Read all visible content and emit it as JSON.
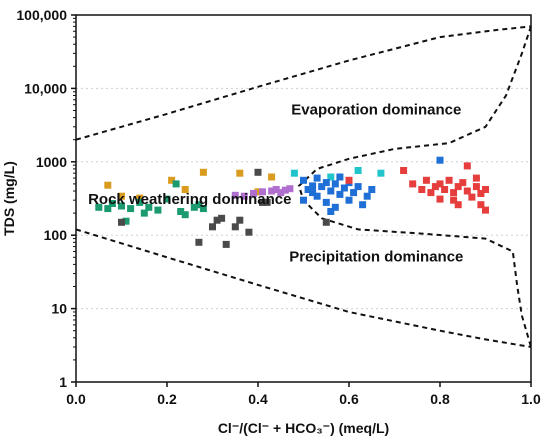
{
  "chart_data": {
    "type": "scatter",
    "title": "",
    "xlabel": "Cl⁻/(Cl⁻ + HCO₃⁻) (meq/L)",
    "ylabel": "TDS (mg/L)",
    "xlim": [
      0,
      1.0
    ],
    "ylim": [
      1,
      100000
    ],
    "y_scale": "log",
    "grid": "horizontal dotted",
    "x_ticks": [
      "0.0",
      "0.2",
      "0.4",
      "0.6",
      "0.8",
      "1.0"
    ],
    "y_ticks": [
      {
        "value": 1,
        "label": "1"
      },
      {
        "value": 10,
        "label": "10"
      },
      {
        "value": 100,
        "label": "100"
      },
      {
        "value": 1000,
        "label": "1000"
      },
      {
        "value": 10000,
        "label": "10,000"
      },
      {
        "value": 100000,
        "label": "100,000"
      }
    ],
    "regions": [
      {
        "label": "Evaporation dominance",
        "x": 0.66,
        "y": 5000
      },
      {
        "label": "Rock weathering dominance",
        "x": 0.25,
        "y": 300
      },
      {
        "label": "Precipitation dominance",
        "x": 0.66,
        "y": 50
      }
    ],
    "boundary_upper": [
      [
        0.0,
        2000
      ],
      [
        0.2,
        4500
      ],
      [
        0.4,
        10500
      ],
      [
        0.6,
        24000
      ],
      [
        0.8,
        50000
      ],
      [
        0.92,
        62000
      ],
      [
        1.0,
        70000
      ]
    ],
    "boundary_lower": [
      [
        0.0,
        120
      ],
      [
        0.2,
        50
      ],
      [
        0.4,
        21
      ],
      [
        0.6,
        9
      ],
      [
        0.8,
        5
      ],
      [
        0.9,
        3.8
      ],
      [
        1.0,
        3
      ]
    ],
    "boundary_right": [
      [
        1.0,
        70000
      ],
      [
        0.98,
        30000
      ],
      [
        0.945,
        8000
      ],
      [
        0.9,
        3000
      ],
      [
        0.82,
        1800
      ],
      [
        0.7,
        1500
      ],
      [
        0.6,
        1100
      ],
      [
        0.53,
        800
      ],
      [
        0.49,
        470
      ],
      [
        0.5,
        300
      ],
      [
        0.54,
        170
      ],
      [
        0.62,
        120
      ],
      [
        0.76,
        105
      ],
      [
        0.9,
        90
      ],
      [
        0.96,
        60
      ],
      [
        0.97,
        20
      ],
      [
        0.98,
        8
      ],
      [
        1.0,
        3
      ]
    ],
    "series": [
      {
        "color": "#d99c1f",
        "points": [
          [
            0.07,
            480
          ],
          [
            0.1,
            340
          ],
          [
            0.14,
            320
          ],
          [
            0.21,
            560
          ],
          [
            0.24,
            420
          ],
          [
            0.28,
            720
          ],
          [
            0.36,
            700
          ],
          [
            0.4,
            390
          ],
          [
            0.43,
            620
          ]
        ]
      },
      {
        "color": "#1a9a6e",
        "points": [
          [
            0.05,
            240
          ],
          [
            0.07,
            230
          ],
          [
            0.08,
            270
          ],
          [
            0.1,
            250
          ],
          [
            0.12,
            230
          ],
          [
            0.14,
            280
          ],
          [
            0.15,
            200
          ],
          [
            0.16,
            240
          ],
          [
            0.18,
            220
          ],
          [
            0.2,
            310
          ],
          [
            0.22,
            500
          ],
          [
            0.23,
            210
          ],
          [
            0.24,
            190
          ],
          [
            0.26,
            240
          ],
          [
            0.27,
            260
          ],
          [
            0.28,
            230
          ],
          [
            0.11,
            155
          ]
        ]
      },
      {
        "color": "#4a4a4a",
        "points": [
          [
            0.1,
            150
          ],
          [
            0.27,
            80
          ],
          [
            0.3,
            130
          ],
          [
            0.31,
            160
          ],
          [
            0.32,
            170
          ],
          [
            0.33,
            75
          ],
          [
            0.35,
            130
          ],
          [
            0.36,
            160
          ],
          [
            0.38,
            110
          ],
          [
            0.4,
            720
          ],
          [
            0.41,
            280
          ],
          [
            0.42,
            280
          ],
          [
            0.55,
            150
          ]
        ]
      },
      {
        "color": "#b06fcf",
        "points": [
          [
            0.35,
            350
          ],
          [
            0.37,
            340
          ],
          [
            0.39,
            370
          ],
          [
            0.41,
            390
          ],
          [
            0.43,
            400
          ],
          [
            0.44,
            420
          ],
          [
            0.45,
            380
          ],
          [
            0.47,
            430
          ],
          [
            0.46,
            410
          ]
        ]
      },
      {
        "color": "#22c4cc",
        "points": [
          [
            0.48,
            700
          ],
          [
            0.56,
            620
          ],
          [
            0.62,
            760
          ],
          [
            0.67,
            700
          ]
        ]
      },
      {
        "color": "#1f6fd6",
        "points": [
          [
            0.5,
            300
          ],
          [
            0.5,
            560
          ],
          [
            0.51,
            420
          ],
          [
            0.52,
            380
          ],
          [
            0.53,
            600
          ],
          [
            0.53,
            340
          ],
          [
            0.54,
            460
          ],
          [
            0.55,
            520
          ],
          [
            0.55,
            280
          ],
          [
            0.56,
            400
          ],
          [
            0.57,
            240
          ],
          [
            0.57,
            500
          ],
          [
            0.58,
            360
          ],
          [
            0.58,
            620
          ],
          [
            0.59,
            440
          ],
          [
            0.6,
            300
          ],
          [
            0.6,
            520
          ],
          [
            0.61,
            380
          ],
          [
            0.62,
            460
          ],
          [
            0.63,
            260
          ],
          [
            0.64,
            340
          ],
          [
            0.65,
            420
          ],
          [
            0.56,
            210
          ],
          [
            0.52,
            470
          ],
          [
            0.8,
            1050
          ]
        ]
      },
      {
        "color": "#e63d3d",
        "points": [
          [
            0.6,
            560
          ],
          [
            0.72,
            760
          ],
          [
            0.76,
            420
          ],
          [
            0.78,
            380
          ],
          [
            0.79,
            460
          ],
          [
            0.8,
            500
          ],
          [
            0.8,
            310
          ],
          [
            0.81,
            420
          ],
          [
            0.82,
            560
          ],
          [
            0.83,
            380
          ],
          [
            0.84,
            460
          ],
          [
            0.84,
            260
          ],
          [
            0.85,
            520
          ],
          [
            0.86,
            400
          ],
          [
            0.86,
            880
          ],
          [
            0.87,
            330
          ],
          [
            0.88,
            460
          ],
          [
            0.89,
            370
          ],
          [
            0.89,
            260
          ],
          [
            0.9,
            420
          ],
          [
            0.9,
            220
          ],
          [
            0.88,
            600
          ],
          [
            0.74,
            500
          ],
          [
            0.77,
            560
          ],
          [
            0.83,
            300
          ]
        ]
      }
    ]
  }
}
